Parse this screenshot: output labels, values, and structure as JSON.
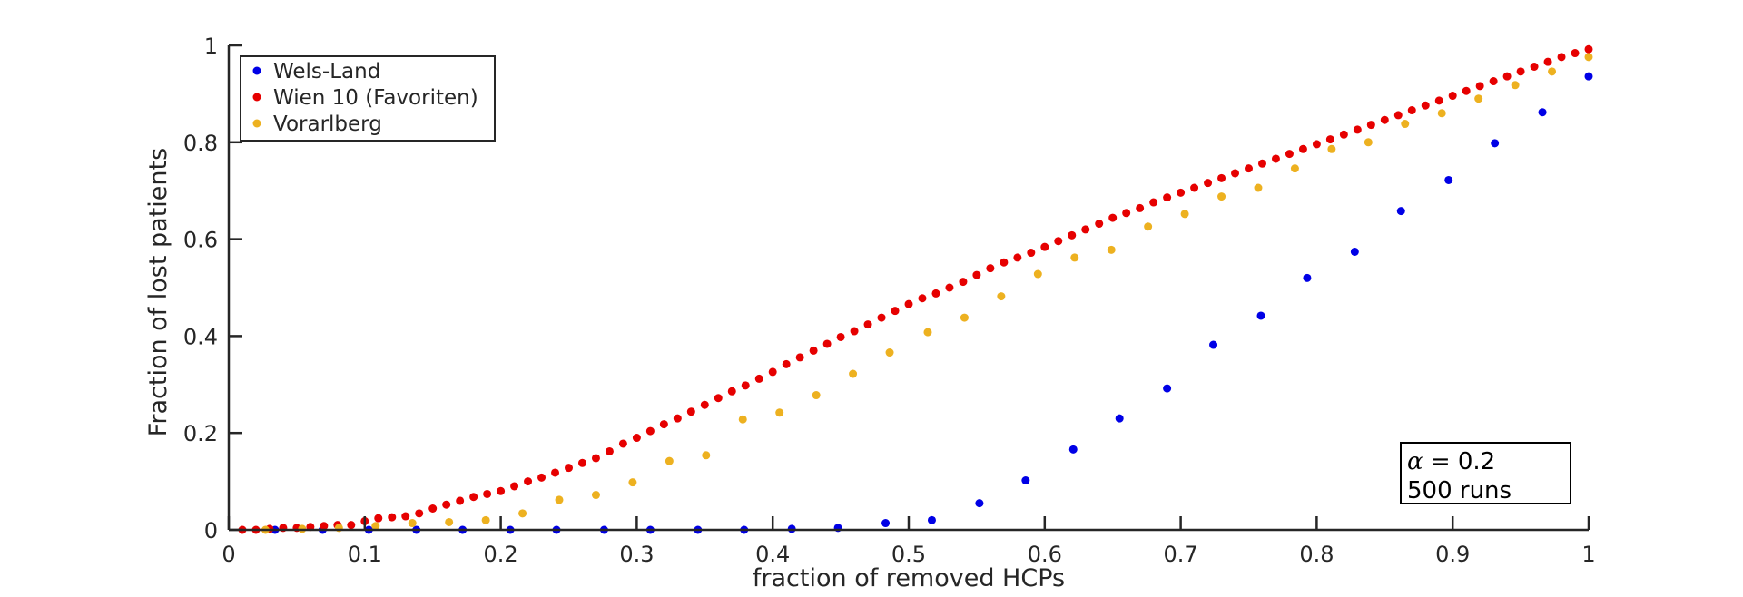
{
  "chart_data": {
    "type": "scatter",
    "xlabel": "fraction of removed HCPs",
    "ylabel": "Fraction of lost patients",
    "xlim": [
      0,
      1
    ],
    "ylim": [
      0,
      1
    ],
    "grid": false,
    "legend_position": "top-left",
    "x_ticks": [
      "0",
      "0.1",
      "0.2",
      "0.3",
      "0.4",
      "0.5",
      "0.6",
      "0.7",
      "0.8",
      "0.9",
      "1"
    ],
    "y_ticks": [
      "0",
      "0.2",
      "0.4",
      "0.6",
      "0.8",
      "1"
    ],
    "annotation": {
      "alpha_symbol": "α",
      "alpha_text": " = 0.2",
      "runs_text": "500 runs"
    },
    "series": [
      {
        "name": "Wels-Land",
        "color": "#0000e6",
        "points": [
          [
            0.034,
            0
          ],
          [
            0.069,
            0
          ],
          [
            0.103,
            0
          ],
          [
            0.138,
            0
          ],
          [
            0.172,
            0
          ],
          [
            0.207,
            0
          ],
          [
            0.241,
            0
          ],
          [
            0.276,
            0
          ],
          [
            0.31,
            0
          ],
          [
            0.345,
            0
          ],
          [
            0.379,
            0
          ],
          [
            0.414,
            0.002
          ],
          [
            0.448,
            0.004
          ],
          [
            0.483,
            0.014
          ],
          [
            0.517,
            0.02
          ],
          [
            0.552,
            0.055
          ],
          [
            0.586,
            0.102
          ],
          [
            0.621,
            0.166
          ],
          [
            0.655,
            0.23
          ],
          [
            0.69,
            0.292
          ],
          [
            0.724,
            0.382
          ],
          [
            0.759,
            0.442
          ],
          [
            0.793,
            0.52
          ],
          [
            0.828,
            0.574
          ],
          [
            0.862,
            0.658
          ],
          [
            0.897,
            0.722
          ],
          [
            0.931,
            0.798
          ],
          [
            0.966,
            0.862
          ],
          [
            1.0,
            0.936
          ]
        ]
      },
      {
        "name": "Wien 10 (Favoriten)",
        "color": "#e60000",
        "points": [
          [
            0.01,
            0
          ],
          [
            0.02,
            0
          ],
          [
            0.03,
            0.002
          ],
          [
            0.04,
            0.004
          ],
          [
            0.05,
            0.004
          ],
          [
            0.06,
            0.006
          ],
          [
            0.07,
            0.008
          ],
          [
            0.08,
            0.01
          ],
          [
            0.09,
            0.01
          ],
          [
            0.1,
            0.018
          ],
          [
            0.11,
            0.024
          ],
          [
            0.12,
            0.026
          ],
          [
            0.13,
            0.028
          ],
          [
            0.14,
            0.034
          ],
          [
            0.15,
            0.044
          ],
          [
            0.16,
            0.052
          ],
          [
            0.17,
            0.06
          ],
          [
            0.18,
            0.068
          ],
          [
            0.19,
            0.074
          ],
          [
            0.2,
            0.08
          ],
          [
            0.21,
            0.09
          ],
          [
            0.22,
            0.1
          ],
          [
            0.23,
            0.108
          ],
          [
            0.24,
            0.118
          ],
          [
            0.25,
            0.128
          ],
          [
            0.26,
            0.138
          ],
          [
            0.27,
            0.148
          ],
          [
            0.28,
            0.162
          ],
          [
            0.29,
            0.178
          ],
          [
            0.3,
            0.19
          ],
          [
            0.31,
            0.204
          ],
          [
            0.32,
            0.218
          ],
          [
            0.33,
            0.23
          ],
          [
            0.34,
            0.244
          ],
          [
            0.35,
            0.258
          ],
          [
            0.36,
            0.272
          ],
          [
            0.37,
            0.286
          ],
          [
            0.38,
            0.298
          ],
          [
            0.39,
            0.312
          ],
          [
            0.4,
            0.326
          ],
          [
            0.41,
            0.342
          ],
          [
            0.42,
            0.356
          ],
          [
            0.43,
            0.37
          ],
          [
            0.44,
            0.384
          ],
          [
            0.45,
            0.398
          ],
          [
            0.46,
            0.41
          ],
          [
            0.47,
            0.424
          ],
          [
            0.48,
            0.438
          ],
          [
            0.49,
            0.452
          ],
          [
            0.5,
            0.466
          ],
          [
            0.51,
            0.478
          ],
          [
            0.52,
            0.488
          ],
          [
            0.53,
            0.5
          ],
          [
            0.54,
            0.512
          ],
          [
            0.55,
            0.526
          ],
          [
            0.56,
            0.54
          ],
          [
            0.57,
            0.552
          ],
          [
            0.58,
            0.562
          ],
          [
            0.59,
            0.572
          ],
          [
            0.6,
            0.584
          ],
          [
            0.61,
            0.596
          ],
          [
            0.62,
            0.608
          ],
          [
            0.63,
            0.62
          ],
          [
            0.64,
            0.632
          ],
          [
            0.65,
            0.644
          ],
          [
            0.66,
            0.654
          ],
          [
            0.67,
            0.664
          ],
          [
            0.68,
            0.676
          ],
          [
            0.69,
            0.686
          ],
          [
            0.7,
            0.696
          ],
          [
            0.71,
            0.706
          ],
          [
            0.72,
            0.716
          ],
          [
            0.73,
            0.726
          ],
          [
            0.74,
            0.736
          ],
          [
            0.75,
            0.746
          ],
          [
            0.76,
            0.756
          ],
          [
            0.77,
            0.766
          ],
          [
            0.78,
            0.776
          ],
          [
            0.79,
            0.786
          ],
          [
            0.8,
            0.796
          ],
          [
            0.81,
            0.806
          ],
          [
            0.82,
            0.816
          ],
          [
            0.83,
            0.826
          ],
          [
            0.84,
            0.836
          ],
          [
            0.85,
            0.846
          ],
          [
            0.86,
            0.856
          ],
          [
            0.87,
            0.866
          ],
          [
            0.88,
            0.876
          ],
          [
            0.89,
            0.886
          ],
          [
            0.9,
            0.896
          ],
          [
            0.91,
            0.906
          ],
          [
            0.92,
            0.916
          ],
          [
            0.93,
            0.926
          ],
          [
            0.94,
            0.936
          ],
          [
            0.95,
            0.946
          ],
          [
            0.96,
            0.956
          ],
          [
            0.97,
            0.966
          ],
          [
            0.98,
            0.976
          ],
          [
            0.99,
            0.984
          ],
          [
            1.0,
            0.992
          ]
        ]
      },
      {
        "name": "Vorarlberg",
        "color": "#edb120",
        "points": [
          [
            0.027,
            0
          ],
          [
            0.054,
            0.002
          ],
          [
            0.081,
            0.004
          ],
          [
            0.108,
            0.008
          ],
          [
            0.135,
            0.014
          ],
          [
            0.162,
            0.016
          ],
          [
            0.189,
            0.02
          ],
          [
            0.216,
            0.034
          ],
          [
            0.243,
            0.062
          ],
          [
            0.27,
            0.072
          ],
          [
            0.297,
            0.098
          ],
          [
            0.324,
            0.142
          ],
          [
            0.351,
            0.154
          ],
          [
            0.378,
            0.228
          ],
          [
            0.405,
            0.242
          ],
          [
            0.432,
            0.278
          ],
          [
            0.459,
            0.322
          ],
          [
            0.486,
            0.366
          ],
          [
            0.514,
            0.408
          ],
          [
            0.541,
            0.438
          ],
          [
            0.568,
            0.482
          ],
          [
            0.595,
            0.528
          ],
          [
            0.622,
            0.562
          ],
          [
            0.649,
            0.578
          ],
          [
            0.676,
            0.626
          ],
          [
            0.703,
            0.652
          ],
          [
            0.73,
            0.688
          ],
          [
            0.757,
            0.706
          ],
          [
            0.784,
            0.746
          ],
          [
            0.811,
            0.786
          ],
          [
            0.838,
            0.8
          ],
          [
            0.865,
            0.838
          ],
          [
            0.892,
            0.86
          ],
          [
            0.919,
            0.89
          ],
          [
            0.946,
            0.918
          ],
          [
            0.973,
            0.946
          ],
          [
            1.0,
            0.976
          ]
        ]
      }
    ]
  }
}
